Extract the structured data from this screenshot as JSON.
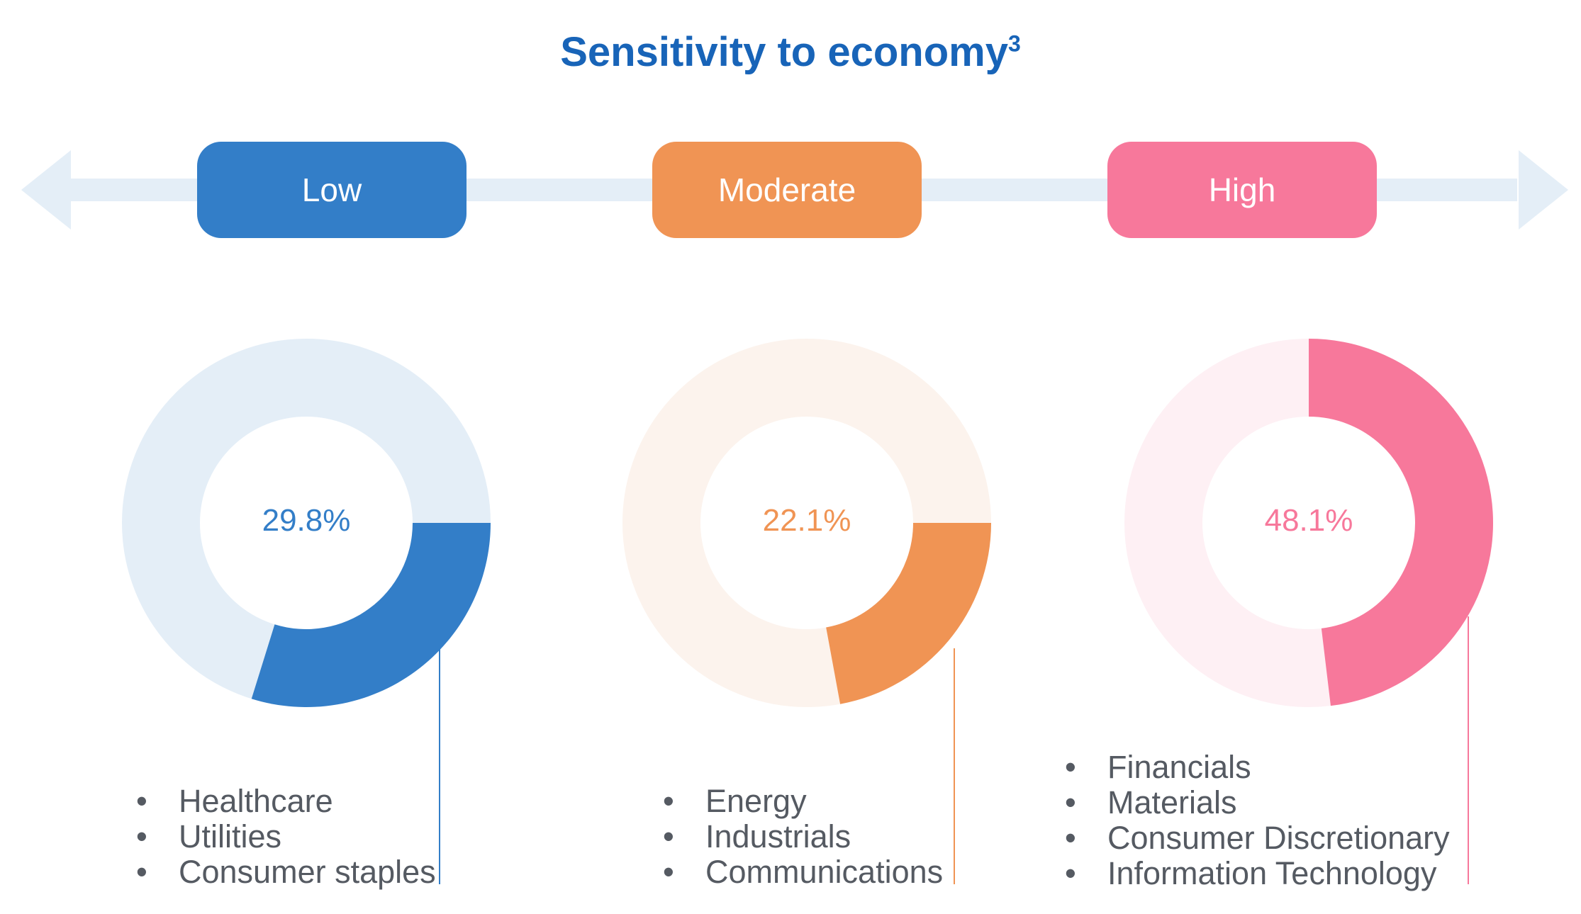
{
  "title": "Sensitivity to economy",
  "title_superscript": "3",
  "colors": {
    "title": "#1864b8",
    "axis": "#e4eef7",
    "text": "#555a62"
  },
  "chart_data": {
    "type": "pie",
    "variant": "donut",
    "title": "Sensitivity to economy",
    "series": [
      {
        "name": "Low",
        "value": 29.8,
        "label": "29.8%",
        "color": "#337ec8",
        "track_color": "#e4eef7",
        "sectors": [
          "Healthcare",
          "Utilities",
          "Consumer staples"
        ]
      },
      {
        "name": "Moderate",
        "value": 22.1,
        "label": "22.1%",
        "color": "#f09454",
        "track_color": "#fcf3ed",
        "sectors": [
          "Energy",
          "Industrials",
          "Communications"
        ]
      },
      {
        "name": "High",
        "value": 48.1,
        "label": "48.1%",
        "color": "#f7789b",
        "track_color": "#fef0f4",
        "sectors": [
          "Financials",
          "Materials",
          "Consumer Discretionary",
          "Information Technology"
        ]
      }
    ]
  }
}
